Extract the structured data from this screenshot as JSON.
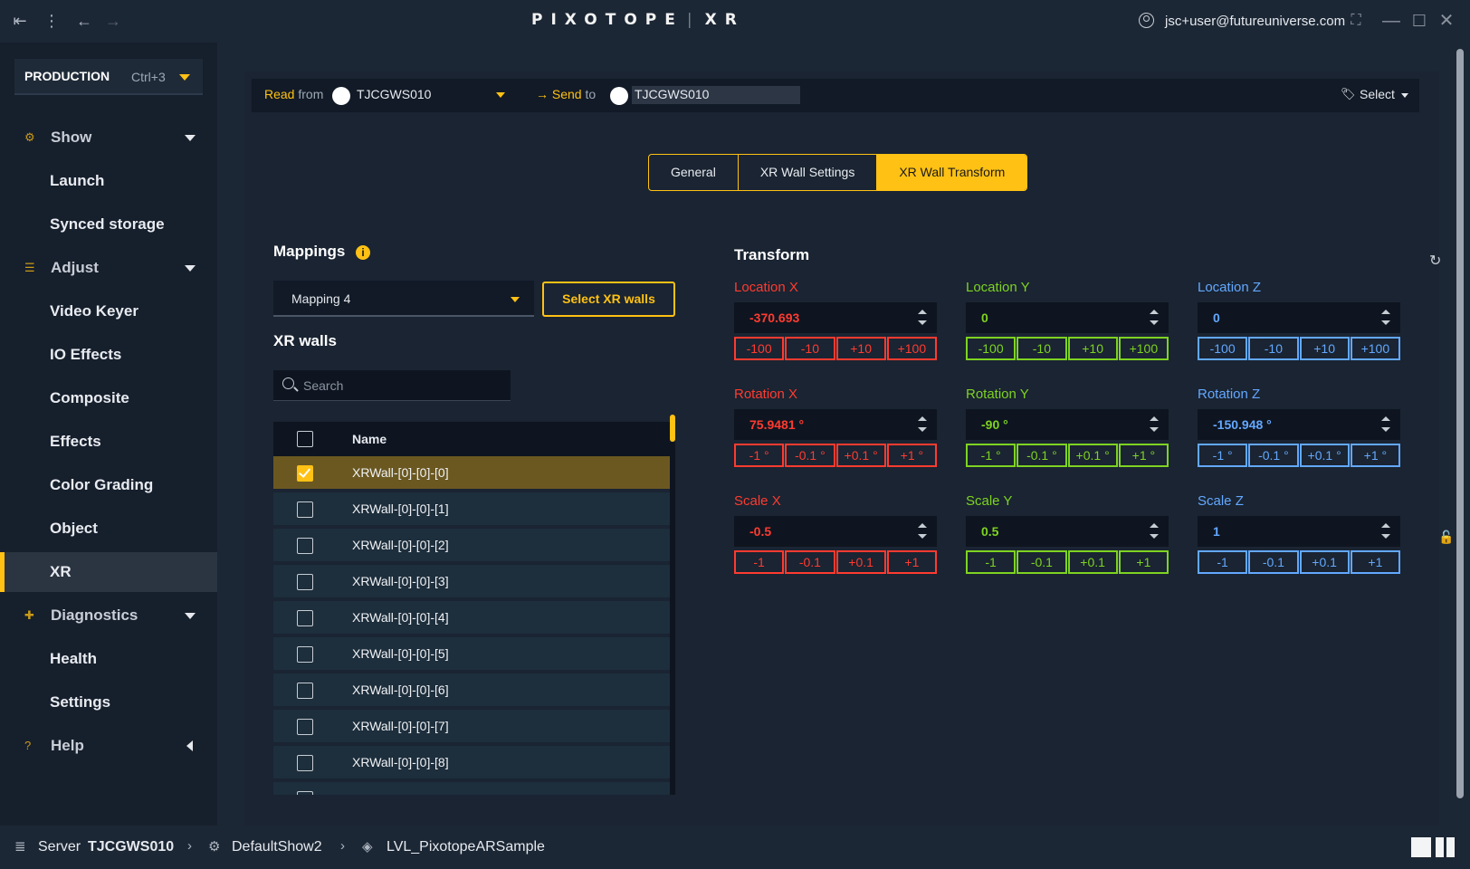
{
  "app": {
    "logo": "PIXOTOPE",
    "product": "XR",
    "user": "jsc+user@futureuniverse.com"
  },
  "sidebar": {
    "production_label": "PRODUCTION",
    "production_shortcut": "Ctrl+3",
    "items": [
      {
        "label": "Show",
        "type": "section"
      },
      {
        "label": "Launch",
        "type": "sub"
      },
      {
        "label": "Synced storage",
        "type": "sub"
      },
      {
        "label": "Adjust",
        "type": "section"
      },
      {
        "label": "Video Keyer",
        "type": "sub"
      },
      {
        "label": "IO Effects",
        "type": "sub"
      },
      {
        "label": "Composite",
        "type": "sub"
      },
      {
        "label": "Effects",
        "type": "sub"
      },
      {
        "label": "Color Grading",
        "type": "sub"
      },
      {
        "label": "Object",
        "type": "sub"
      },
      {
        "label": "XR",
        "type": "sub",
        "active": true
      },
      {
        "label": "Diagnostics",
        "type": "section"
      },
      {
        "label": "Health",
        "type": "sub"
      },
      {
        "label": "Settings",
        "type": "sub"
      },
      {
        "label": "Help",
        "type": "section"
      }
    ]
  },
  "topbar": {
    "read_label": "Read",
    "from_label": "from",
    "read_machine": "TJCGWS010",
    "send_label": "→ Send",
    "to_label": "to",
    "send_machine": "TJCGWS010",
    "select_label": "Select"
  },
  "tabs": [
    {
      "label": "General",
      "active": false
    },
    {
      "label": "XR Wall Settings",
      "active": false
    },
    {
      "label": "XR Wall Transform",
      "active": true
    }
  ],
  "mappings": {
    "title": "Mappings",
    "selected": "Mapping 4",
    "select_walls_button": "Select XR walls"
  },
  "xr_walls": {
    "title": "XR walls",
    "search_placeholder": "Search",
    "column_name": "Name",
    "rows": [
      {
        "name": "XRWall-[0]-[0]-[0]",
        "checked": true
      },
      {
        "name": "XRWall-[0]-[0]-[1]",
        "checked": false
      },
      {
        "name": "XRWall-[0]-[0]-[2]",
        "checked": false
      },
      {
        "name": "XRWall-[0]-[0]-[3]",
        "checked": false
      },
      {
        "name": "XRWall-[0]-[0]-[4]",
        "checked": false
      },
      {
        "name": "XRWall-[0]-[0]-[5]",
        "checked": false
      },
      {
        "name": "XRWall-[0]-[0]-[6]",
        "checked": false
      },
      {
        "name": "XRWall-[0]-[0]-[7]",
        "checked": false
      },
      {
        "name": "XRWall-[0]-[0]-[8]",
        "checked": false
      }
    ]
  },
  "transform": {
    "title": "Transform",
    "colors": {
      "x": "#ff3b30",
      "y": "#7ed321",
      "z": "#63a8ff"
    },
    "location": {
      "x": {
        "label": "Location X",
        "value": "-370.693"
      },
      "y": {
        "label": "Location Y",
        "value": "0"
      },
      "z": {
        "label": "Location Z",
        "value": "0"
      },
      "steps": [
        "-100",
        "-10",
        "+10",
        "+100"
      ]
    },
    "rotation": {
      "x": {
        "label": "Rotation X",
        "value": "75.9481 °"
      },
      "y": {
        "label": "Rotation Y",
        "value": "-90 °"
      },
      "z": {
        "label": "Rotation Z",
        "value": "-150.948 °"
      },
      "steps": [
        "-1 °",
        "-0.1 °",
        "+0.1 °",
        "+1 °"
      ]
    },
    "scale": {
      "x": {
        "label": "Scale X",
        "value": "-0.5"
      },
      "y": {
        "label": "Scale Y",
        "value": "0.5"
      },
      "z": {
        "label": "Scale Z",
        "value": "1"
      },
      "steps": [
        "-1",
        "-0.1",
        "+0.1",
        "+1"
      ]
    }
  },
  "statusbar": {
    "server_label": "Server",
    "server_name": "TJCGWS010",
    "show": "DefaultShow2",
    "level": "LVL_PixotopeARSample"
  }
}
